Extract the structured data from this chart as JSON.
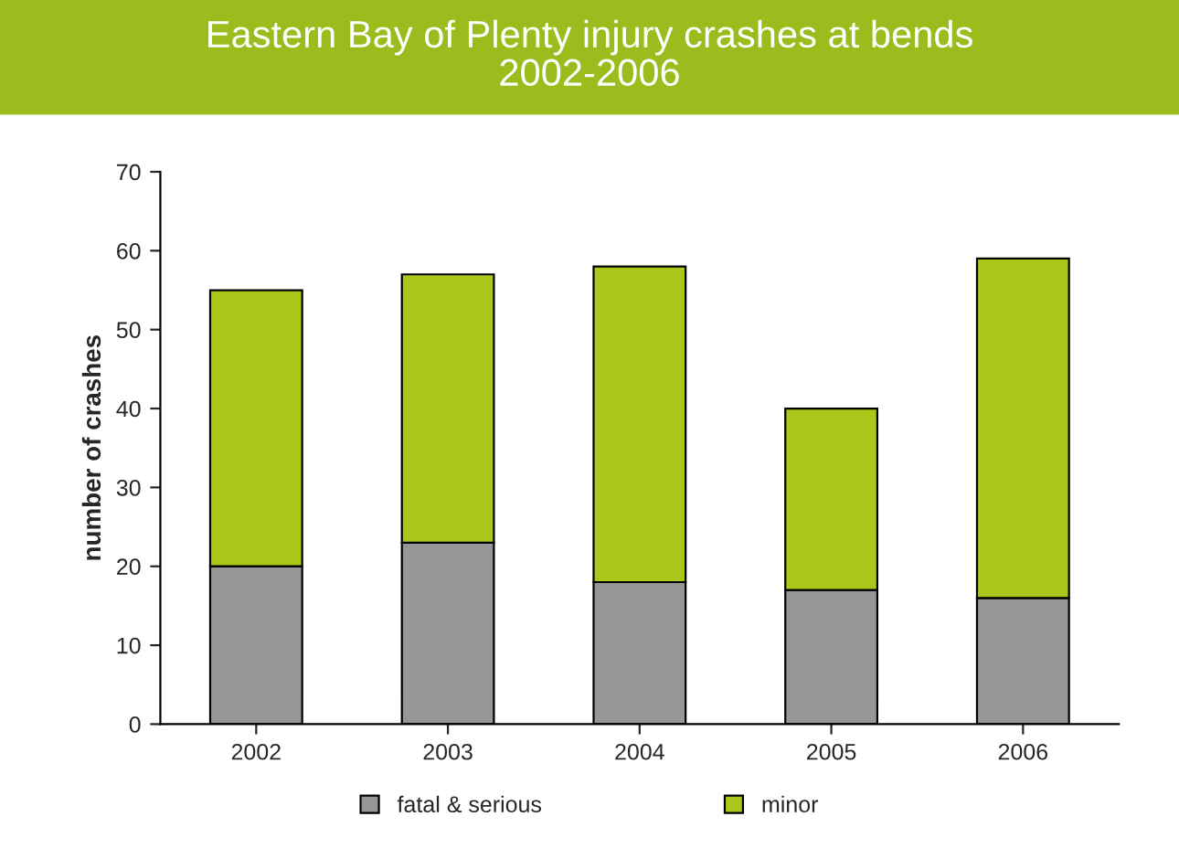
{
  "chart_data": {
    "type": "bar",
    "stacked": true,
    "title": "Eastern Bay of Plenty injury crashes at bends\n2002-2006",
    "ylabel": "number of crashes",
    "categories": [
      "2002",
      "2003",
      "2004",
      "2005",
      "2006"
    ],
    "series": [
      {
        "name": "fatal & serious",
        "color": "#969696",
        "values": [
          20,
          23,
          18,
          17,
          16
        ]
      },
      {
        "name": "minor",
        "color": "#acc61a",
        "values": [
          35,
          34,
          40,
          23,
          43
        ]
      }
    ],
    "ylim": [
      0,
      70
    ],
    "yticks": [
      0,
      10,
      20,
      30,
      40,
      50,
      60,
      70
    ],
    "grid": false,
    "legend": "bottom"
  }
}
